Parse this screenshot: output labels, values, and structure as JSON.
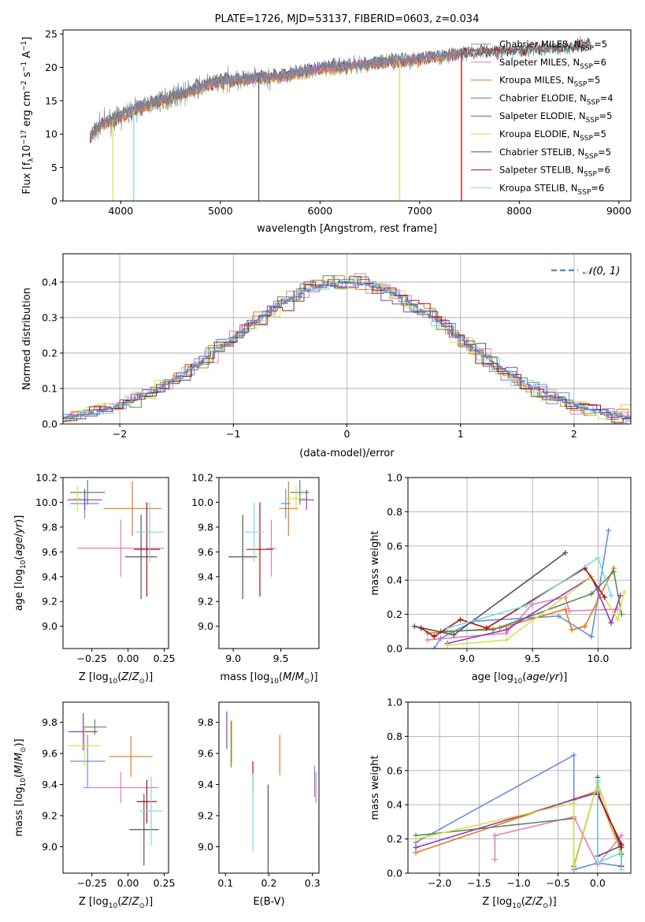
{
  "colors": {
    "Chabrier MILES": "#6a8fd8",
    "Salpeter MILES": "#e87db5",
    "Kroupa MILES": "#e07a1c",
    "Chabrier ELODIE": "#5a8a5a",
    "Salpeter ELODIE": "#8e3bb5",
    "Kroupa ELODIE": "#d8df4a",
    "Chabrier STELIB": "#555555",
    "Salpeter STELIB": "#a81010",
    "Kroupa STELIB": "#7ad8e8",
    "normal": "#5b8bd4"
  },
  "chart_data": [
    {
      "type": "line",
      "title": "PLATE=1726, MJD=53137, FIBERID=0603, z=0.034",
      "xlabel": "wavelength [Angstrom, rest frame]",
      "ylabel": "Flux [fλ10⁻¹⁷ erg cm⁻² s⁻¹ A⁻¹]",
      "xlim": [
        3420,
        9120
      ],
      "ylim": [
        0,
        25.6
      ],
      "xticks": [
        4000,
        5000,
        6000,
        7000,
        8000,
        9000
      ],
      "yticks": [
        0,
        5,
        10,
        15,
        20,
        25
      ],
      "legend_position": "top-right",
      "legend": [
        {
          "label": "Chabrier MILES, NSSP=5",
          "text": "Chabrier MILES, N",
          "sub": "SSP",
          "tail": "=5",
          "color": "#6a8fd8"
        },
        {
          "label": "Salpeter MILES, NSSP=6",
          "text": "Salpeter MILES, N",
          "sub": "SSP",
          "tail": "=6",
          "color": "#e87db5"
        },
        {
          "label": "Kroupa MILES, NSSP=5",
          "text": "Kroupa MILES, N",
          "sub": "SSP",
          "tail": "=5",
          "color": "#e07a1c"
        },
        {
          "label": "Chabrier ELODIE, NSSP=4",
          "text": "Chabrier ELODIE, N",
          "sub": "SSP",
          "tail": "=4",
          "color": "#5a8a5a"
        },
        {
          "label": "Salpeter ELODIE, NSSP=5",
          "text": "Salpeter ELODIE, N",
          "sub": "SSP",
          "tail": "=5",
          "color": "#8e3bb5"
        },
        {
          "label": "Kroupa ELODIE, NSSP=5",
          "text": "Kroupa ELODIE, N",
          "sub": "SSP",
          "tail": "=5",
          "color": "#d8df4a"
        },
        {
          "label": "Chabrier STELIB, NSSP=5",
          "text": "Chabrier STELIB, N",
          "sub": "SSP",
          "tail": "=5",
          "color": "#555555"
        },
        {
          "label": "Salpeter STELIB, NSSP=6",
          "text": "Salpeter STELIB, N",
          "sub": "SSP",
          "tail": "=6",
          "color": "#a81010"
        },
        {
          "label": "Kroupa STELIB, NSSP=6",
          "text": "Kroupa STELIB, N",
          "sub": "SSP",
          "tail": "=6",
          "color": "#7ad8e8"
        }
      ],
      "spectrum_trend": [
        [
          3690,
          9.5
        ],
        [
          3800,
          11.5
        ],
        [
          4000,
          12.5
        ],
        [
          4100,
          13.5
        ],
        [
          4300,
          14.5
        ],
        [
          4600,
          16.0
        ],
        [
          5000,
          18.0
        ],
        [
          5500,
          18.5
        ],
        [
          6000,
          19.8
        ],
        [
          6500,
          20.5
        ],
        [
          7000,
          21.3
        ],
        [
          7500,
          22.2
        ],
        [
          8000,
          22.5
        ],
        [
          8500,
          23.0
        ],
        [
          8700,
          23.5
        ]
      ],
      "model_drops": [
        {
          "model": "Kroupa ELODIE",
          "x": 3920
        },
        {
          "model": "Kroupa STELIB",
          "x": 4130
        },
        {
          "model": "Kroupa ELODIE",
          "x": 6800
        },
        {
          "model": "Kroupa MILES",
          "x": 7420
        },
        {
          "model": "Salpeter STELIB",
          "x": 7420
        },
        {
          "model": "Chabrier STELIB",
          "x": 5385
        }
      ],
      "model_end_wavelength": {
        "MILES": 7420,
        "ELODIE": 6800,
        "STELIB": 8700
      }
    },
    {
      "type": "step",
      "xlabel": "(data-model)/error",
      "ylabel": "Normed distribution",
      "xlim": [
        -2.5,
        2.5
      ],
      "ylim": [
        0,
        0.48
      ],
      "xticks": [
        -2,
        -1,
        0,
        1,
        2
      ],
      "xtick_labels": [
        "−2",
        "−1",
        "0",
        "1",
        "2"
      ],
      "yticks": [
        0.0,
        0.1,
        0.2,
        0.3,
        0.4
      ],
      "legend_position": "top-right",
      "legend_label": "𝒩(0, 1)",
      "reference_curve": "normal pdf, mean 0, sigma 1"
    },
    {
      "type": "errorbar",
      "xlabel": "Z [log10(Z/Z☉)]",
      "ylabel": "age  [log10(age/yr)]",
      "xlim": [
        -0.45,
        0.28
      ],
      "ylim": [
        8.82,
        10.2
      ],
      "xticks": [
        -0.25,
        0.0,
        0.25
      ],
      "xtick_labels": [
        "−0.25",
        "0.00",
        "0.25"
      ],
      "yticks": [
        9.0,
        9.2,
        9.4,
        9.6,
        9.8,
        10.0,
        10.2
      ],
      "points": [
        {
          "model": "Chabrier MILES",
          "x": -0.3,
          "y": 9.99,
          "xerr": 0.1,
          "yerr": 0.12
        },
        {
          "model": "Salpeter MILES",
          "x": -0.05,
          "y": 9.63,
          "xerr": 0.3,
          "yerr": 0.23
        },
        {
          "model": "Kroupa MILES",
          "x": 0.03,
          "y": 9.95,
          "xerr": 0.2,
          "yerr": 0.22
        },
        {
          "model": "Chabrier ELODIE",
          "x": -0.28,
          "y": 10.08,
          "xerr": 0.12,
          "yerr": 0.1
        },
        {
          "model": "Salpeter ELODIE",
          "x": -0.3,
          "y": 10.02,
          "xerr": 0.12,
          "yerr": 0.08
        },
        {
          "model": "Kroupa ELODIE",
          "x": -0.35,
          "y": 10.03,
          "xerr": 0.03,
          "yerr": 0.1
        },
        {
          "model": "Chabrier STELIB",
          "x": 0.09,
          "y": 9.56,
          "xerr": 0.11,
          "yerr": 0.34
        },
        {
          "model": "Salpeter STELIB",
          "x": 0.13,
          "y": 9.62,
          "xerr": 0.09,
          "yerr": 0.38
        },
        {
          "model": "Kroupa STELIB",
          "x": 0.15,
          "y": 9.76,
          "xerr": 0.1,
          "yerr": 0.24
        }
      ]
    },
    {
      "type": "errorbar",
      "xlabel": "mass [log10(M/M☉)]",
      "ylabel": "",
      "xlim": [
        8.85,
        9.9
      ],
      "ylim": [
        8.82,
        10.2
      ],
      "xticks": [
        9.0,
        9.5
      ],
      "xtick_labels": [
        "9.0",
        "9.5"
      ],
      "yticks": [
        9.0,
        9.2,
        9.4,
        9.6,
        9.8,
        10.0,
        10.2
      ],
      "points": [
        {
          "model": "Chabrier MILES",
          "x": 9.55,
          "y": 9.99,
          "xerr": 0.05,
          "yerr": 0.12
        },
        {
          "model": "Salpeter MILES",
          "x": 9.4,
          "y": 9.63,
          "xerr": 0.05,
          "yerr": 0.23
        },
        {
          "model": "Kroupa MILES",
          "x": 9.58,
          "y": 9.95,
          "xerr": 0.1,
          "yerr": 0.22
        },
        {
          "model": "Chabrier ELODIE",
          "x": 9.7,
          "y": 10.08,
          "xerr": 0.1,
          "yerr": 0.1
        },
        {
          "model": "Salpeter ELODIE",
          "x": 9.77,
          "y": 10.02,
          "xerr": 0.08,
          "yerr": 0.08
        },
        {
          "model": "Kroupa ELODIE",
          "x": 9.66,
          "y": 10.03,
          "xerr": 0.1,
          "yerr": 0.1
        },
        {
          "model": "Chabrier STELIB",
          "x": 9.1,
          "y": 9.56,
          "xerr": 0.15,
          "yerr": 0.34
        },
        {
          "model": "Salpeter STELIB",
          "x": 9.28,
          "y": 9.62,
          "xerr": 0.14,
          "yerr": 0.38
        },
        {
          "model": "Kroupa STELIB",
          "x": 9.22,
          "y": 9.76,
          "xerr": 0.1,
          "yerr": 0.24
        }
      ]
    },
    {
      "type": "line",
      "xlabel": "age  [log10(age/yr)]",
      "ylabel": "mass weight",
      "xlim": [
        8.55,
        10.25
      ],
      "ylim": [
        0,
        1.0
      ],
      "xticks": [
        9.0,
        9.5,
        10.0
      ],
      "xtick_labels": [
        "9.0",
        "9.5",
        "10.0"
      ],
      "yticks": [
        0.0,
        0.2,
        0.4,
        0.6,
        0.8,
        1.0
      ],
      "series": [
        {
          "model": "Chabrier MILES",
          "points": [
            [
              8.75,
              0.0
            ],
            [
              8.8,
              0.06
            ],
            [
              9.05,
              0.16
            ],
            [
              9.7,
              0.19
            ],
            [
              9.95,
              0.07
            ],
            [
              10.08,
              0.69
            ]
          ]
        },
        {
          "model": "Salpeter MILES",
          "points": [
            [
              8.7,
              0.05
            ],
            [
              9.3,
              0.09
            ],
            [
              9.5,
              0.26
            ],
            [
              9.75,
              0.3
            ],
            [
              9.78,
              0.22
            ],
            [
              10.15,
              0.23
            ]
          ]
        },
        {
          "model": "Kroupa MILES",
          "points": [
            [
              8.7,
              0.09
            ],
            [
              9.25,
              0.12
            ],
            [
              9.75,
              0.23
            ],
            [
              9.8,
              0.11
            ],
            [
              9.9,
              0.13
            ],
            [
              10.12,
              0.47
            ]
          ]
        },
        {
          "model": "Chabrier ELODIE",
          "points": [
            [
              8.8,
              0.1
            ],
            [
              9.2,
              0.11
            ],
            [
              9.95,
              0.32
            ],
            [
              10.12,
              0.45
            ],
            [
              10.18,
              0.2
            ]
          ]
        },
        {
          "model": "Salpeter ELODIE",
          "points": [
            [
              8.85,
              0.03
            ],
            [
              9.3,
              0.11
            ],
            [
              9.95,
              0.42
            ],
            [
              10.1,
              0.15
            ],
            [
              10.17,
              0.31
            ]
          ]
        },
        {
          "model": "Kroupa ELODIE",
          "points": [
            [
              8.85,
              0.02
            ],
            [
              9.3,
              0.05
            ],
            [
              9.95,
              0.42
            ],
            [
              10.15,
              0.17
            ],
            [
              10.2,
              0.33
            ]
          ]
        },
        {
          "model": "Chabrier STELIB",
          "points": [
            [
              8.6,
              0.13
            ],
            [
              8.9,
              0.08
            ],
            [
              9.75,
              0.56
            ]
          ]
        },
        {
          "model": "Salpeter STELIB",
          "points": [
            [
              8.65,
              0.12
            ],
            [
              8.75,
              0.07
            ],
            [
              8.95,
              0.17
            ],
            [
              9.15,
              0.12
            ],
            [
              9.9,
              0.47
            ],
            [
              10.05,
              0.3
            ]
          ]
        },
        {
          "model": "Kroupa STELIB",
          "points": [
            [
              8.85,
              0.12
            ],
            [
              9.45,
              0.25
            ],
            [
              10.0,
              0.53
            ],
            [
              10.1,
              0.31
            ]
          ]
        }
      ]
    },
    {
      "type": "errorbar",
      "xlabel": "Z [log10(Z/Z☉)]",
      "ylabel": "mass [log10(M/M☉)]",
      "xlim": [
        -0.45,
        0.28
      ],
      "ylim": [
        8.83,
        9.93
      ],
      "xticks": [
        -0.25,
        0.0,
        0.25
      ],
      "xtick_labels": [
        "−0.25",
        "0.00",
        "0.25"
      ],
      "yticks": [
        9.0,
        9.2,
        9.4,
        9.6,
        9.8
      ],
      "points": [
        {
          "model": "Chabrier MILES",
          "x": -0.28,
          "y": 9.55,
          "xerr": 0.12,
          "yerr": 0.17
        },
        {
          "model": "Salpeter MILES",
          "x": -0.05,
          "y": 9.38,
          "xerr": 0.26,
          "yerr": 0.1
        },
        {
          "model": "Kroupa MILES",
          "x": 0.02,
          "y": 9.58,
          "xerr": 0.15,
          "yerr": 0.13
        },
        {
          "model": "Chabrier ELODIE",
          "x": -0.23,
          "y": 9.77,
          "xerr": 0.08,
          "yerr": 0.05
        },
        {
          "model": "Salpeter ELODIE",
          "x": -0.31,
          "y": 9.74,
          "xerr": 0.1,
          "yerr": 0.12
        },
        {
          "model": "Kroupa ELODIE",
          "x": -0.3,
          "y": 9.65,
          "xerr": 0.11,
          "yerr": 0.13
        },
        {
          "model": "Chabrier STELIB",
          "x": 0.11,
          "y": 9.11,
          "xerr": 0.1,
          "yerr": 0.23
        },
        {
          "model": "Salpeter STELIB",
          "x": 0.13,
          "y": 9.29,
          "xerr": 0.07,
          "yerr": 0.14
        },
        {
          "model": "Kroupa STELIB",
          "x": 0.16,
          "y": 9.23,
          "xerr": 0.08,
          "yerr": 0.22
        }
      ]
    },
    {
      "type": "errorbar",
      "xlabel": "E(B-V)",
      "ylabel": "",
      "xlim": [
        0.085,
        0.315
      ],
      "ylim": [
        8.83,
        9.93
      ],
      "xticks": [
        0.1,
        0.2,
        0.3
      ],
      "xtick_labels": [
        "0.1",
        "0.2",
        "0.3"
      ],
      "yticks": [
        9.0,
        9.2,
        9.4,
        9.6,
        9.8
      ],
      "points": [
        {
          "model": "Chabrier MILES",
          "x": 0.305,
          "y": 9.42,
          "yerr": 0.1
        },
        {
          "model": "Salpeter MILES",
          "x": 0.308,
          "y": 9.38,
          "yerr": 0.1
        },
        {
          "model": "Kroupa MILES",
          "x": 0.225,
          "y": 9.59,
          "yerr": 0.13
        },
        {
          "model": "Chabrier ELODIE",
          "x": 0.113,
          "y": 9.66,
          "yerr": 0.15
        },
        {
          "model": "Salpeter ELODIE",
          "x": 0.103,
          "y": 9.75,
          "yerr": 0.12
        },
        {
          "model": "Kroupa ELODIE",
          "x": 0.115,
          "y": 9.68,
          "yerr": 0.14
        },
        {
          "model": "Chabrier STELIB",
          "x": 0.198,
          "y": 9.1,
          "yerr": 0.3
        },
        {
          "model": "Salpeter STELIB",
          "x": 0.163,
          "y": 9.45,
          "yerr": 0.1
        },
        {
          "model": "Kroupa STELIB",
          "x": 0.163,
          "y": 9.22,
          "yerr": 0.25
        }
      ]
    },
    {
      "type": "line",
      "xlabel": "Z [log10(Z/Z☉)]",
      "ylabel": "mass weight",
      "xlim": [
        -2.4,
        0.42
      ],
      "ylim": [
        0,
        1.0
      ],
      "xticks": [
        -2.0,
        -1.5,
        -1.0,
        -0.5,
        0.0
      ],
      "xtick_labels": [
        "−2.0",
        "−1.5",
        "−1.0",
        "−0.5",
        "0.0"
      ],
      "yticks": [
        0.0,
        0.2,
        0.4,
        0.6,
        0.8,
        1.0
      ],
      "series": [
        {
          "model": "Chabrier MILES",
          "points": [
            [
              -2.3,
              0.18
            ],
            [
              -0.3,
              0.69
            ],
            [
              -0.3,
              0.02
            ],
            [
              0.0,
              0.06
            ],
            [
              0.3,
              0.04
            ]
          ]
        },
        {
          "model": "Salpeter MILES",
          "points": [
            [
              -1.3,
              0.08
            ],
            [
              -1.3,
              0.22
            ],
            [
              -0.3,
              0.33
            ],
            [
              0.0,
              0.05
            ],
            [
              0.3,
              0.22
            ]
          ]
        },
        {
          "model": "Kroupa MILES",
          "points": [
            [
              -2.3,
              0.12
            ],
            [
              0.0,
              0.48
            ],
            [
              0.3,
              0.11
            ]
          ]
        },
        {
          "model": "Chabrier ELODIE",
          "points": [
            [
              -2.3,
              0.22
            ],
            [
              -0.3,
              0.32
            ],
            [
              -0.3,
              0.04
            ],
            [
              0.0,
              0.53
            ],
            [
              0.3,
              0.11
            ]
          ]
        },
        {
          "model": "Salpeter ELODIE",
          "points": [
            [
              -2.3,
              0.15
            ],
            [
              -0.3,
              0.43
            ],
            [
              0.0,
              0.47
            ],
            [
              0.3,
              0.15
            ]
          ]
        },
        {
          "model": "Kroupa ELODIE",
          "points": [
            [
              -2.3,
              0.2
            ],
            [
              -0.3,
              0.41
            ],
            [
              -0.3,
              0.03
            ],
            [
              0.0,
              0.53
            ],
            [
              0.3,
              0.1
            ]
          ]
        },
        {
          "model": "Chabrier STELIB",
          "points": [
            [
              0.0,
              0.56
            ],
            [
              0.0,
              0.1
            ],
            [
              0.3,
              0.16
            ]
          ]
        },
        {
          "model": "Salpeter STELIB",
          "points": [
            [
              0.0,
              0.46
            ],
            [
              0.3,
              0.17
            ],
            [
              0.3,
              0.04
            ]
          ]
        },
        {
          "model": "Kroupa STELIB",
          "points": [
            [
              0.0,
              0.54
            ],
            [
              0.0,
              0.06
            ],
            [
              0.3,
              0.12
            ],
            [
              0.3,
              0.02
            ]
          ]
        }
      ]
    }
  ]
}
